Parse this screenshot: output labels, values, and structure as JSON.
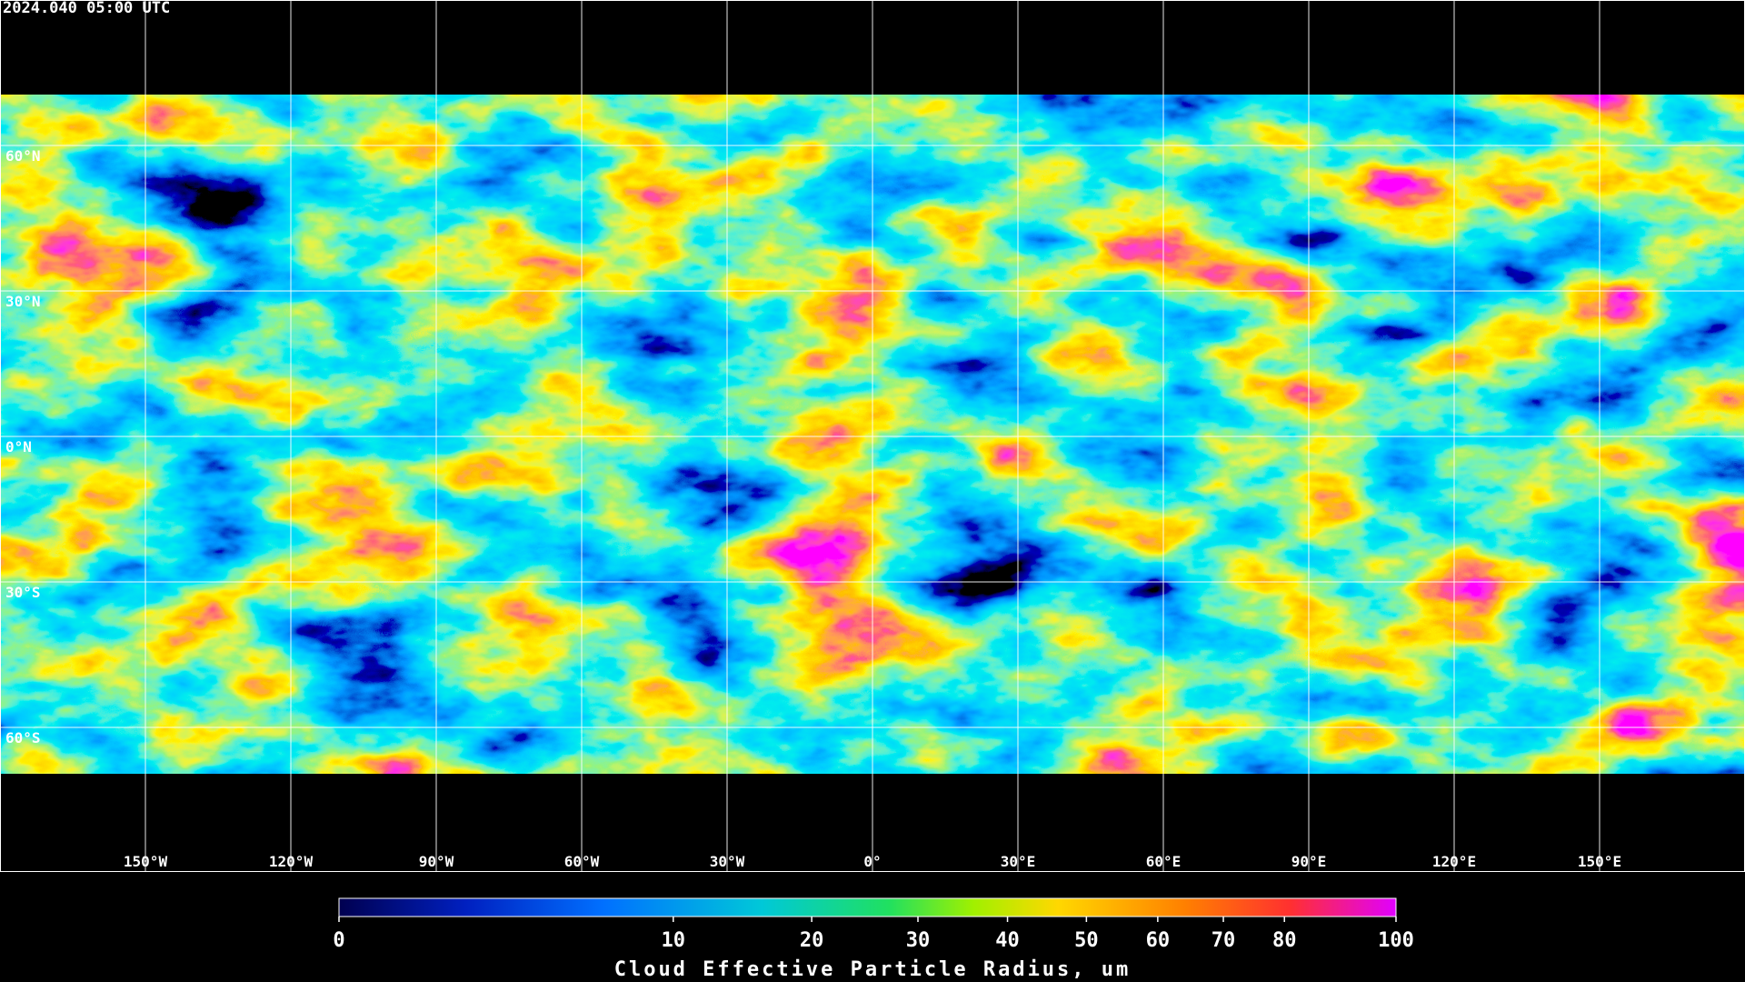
{
  "header": {
    "timestamp": "2024.040 05:00 UTC"
  },
  "map": {
    "xlim": [
      -180,
      180
    ],
    "ylim": [
      -90,
      90
    ],
    "grid": true,
    "lat_labels": [
      {
        "value": 60,
        "label": "60°N"
      },
      {
        "value": 30,
        "label": "30°N"
      },
      {
        "value": 0,
        "label": "0°N"
      },
      {
        "value": -30,
        "label": "30°S"
      },
      {
        "value": -60,
        "label": "60°S"
      }
    ],
    "lon_labels": [
      {
        "value": -150,
        "label": "150°W"
      },
      {
        "value": -120,
        "label": "120°W"
      },
      {
        "value": -90,
        "label": "90°W"
      },
      {
        "value": -60,
        "label": "60°W"
      },
      {
        "value": -30,
        "label": "30°W"
      },
      {
        "value": 0,
        "label": "0°"
      },
      {
        "value": 30,
        "label": "30°E"
      },
      {
        "value": 60,
        "label": "60°E"
      },
      {
        "value": 90,
        "label": "90°E"
      },
      {
        "value": 120,
        "label": "120°E"
      },
      {
        "value": 150,
        "label": "150°E"
      }
    ]
  },
  "colorbar": {
    "title": "Cloud Effective Particle Radius, um",
    "lim": [
      0,
      100
    ],
    "scale": "sqrt",
    "ticks": [
      0,
      10,
      20,
      30,
      40,
      50,
      60,
      70,
      80,
      100
    ]
  }
}
